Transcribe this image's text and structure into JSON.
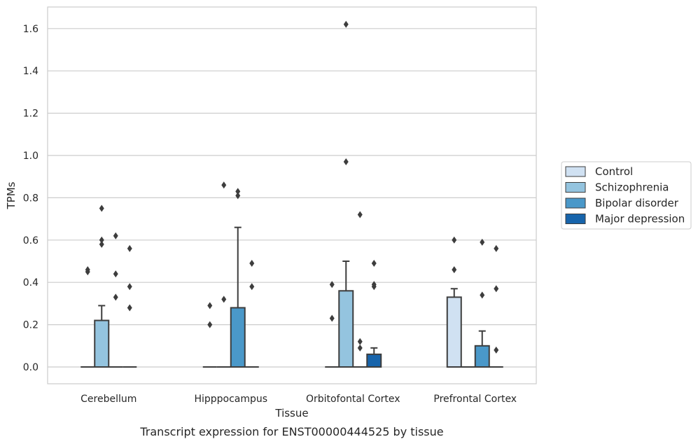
{
  "chart_data": {
    "type": "box",
    "title": "",
    "caption": "Transcript expression for ENST00000444525 by tissue",
    "xlabel": "Tissue",
    "ylabel": "TPMs",
    "ylim": [
      -0.08,
      1.7
    ],
    "yticks": [
      "0.0",
      "0.2",
      "0.4",
      "0.6",
      "0.8",
      "1.0",
      "1.2",
      "1.4",
      "1.6"
    ],
    "grid": "horizontal",
    "legend_position": "right",
    "categories": [
      "Cerebellum",
      "Hipppocampus",
      "Orbitofontal Cortex",
      "Prefrontal Cortex"
    ],
    "series": [
      {
        "name": "Control",
        "color": "#d0e1f2",
        "boxes": [
          {
            "q1": 0,
            "median": 0,
            "q3": 0,
            "whisker_low": 0,
            "whisker_high": 0,
            "outliers": [
              0.45,
              0.46
            ]
          },
          {
            "q1": 0,
            "median": 0,
            "q3": 0,
            "whisker_low": 0,
            "whisker_high": 0,
            "outliers": [
              0.2,
              0.29
            ]
          },
          {
            "q1": 0,
            "median": 0,
            "q3": 0,
            "whisker_low": 0,
            "whisker_high": 0,
            "outliers": [
              0.23,
              0.39
            ]
          },
          {
            "q1": 0,
            "median": 0,
            "q3": 0.33,
            "whisker_low": 0,
            "whisker_high": 0.37,
            "outliers": [
              0.46,
              0.6
            ]
          }
        ]
      },
      {
        "name": "Schizophrenia",
        "color": "#94c4df",
        "boxes": [
          {
            "q1": 0,
            "median": 0,
            "q3": 0.22,
            "whisker_low": 0,
            "whisker_high": 0.29,
            "outliers": [
              0.58,
              0.6,
              0.75
            ]
          },
          {
            "q1": 0,
            "median": 0,
            "q3": 0,
            "whisker_low": 0,
            "whisker_high": 0,
            "outliers": [
              0.32,
              0.86
            ]
          },
          {
            "q1": 0,
            "median": 0,
            "q3": 0.36,
            "whisker_low": 0,
            "whisker_high": 0.5,
            "outliers": [
              0.97,
              1.62
            ]
          },
          {
            "q1": 0,
            "median": 0,
            "q3": 0,
            "whisker_low": 0,
            "whisker_high": 0,
            "outliers": []
          }
        ]
      },
      {
        "name": "Bipolar disorder",
        "color": "#4a98c9",
        "boxes": [
          {
            "q1": 0,
            "median": 0,
            "q3": 0,
            "whisker_low": 0,
            "whisker_high": 0,
            "outliers": [
              0.33,
              0.44,
              0.62
            ]
          },
          {
            "q1": 0,
            "median": 0,
            "q3": 0.28,
            "whisker_low": 0,
            "whisker_high": 0.66,
            "outliers": [
              0.81,
              0.83
            ]
          },
          {
            "q1": 0,
            "median": 0,
            "q3": 0,
            "whisker_low": 0,
            "whisker_high": 0,
            "outliers": [
              0.09,
              0.12,
              0.72
            ]
          },
          {
            "q1": 0,
            "median": 0,
            "q3": 0.1,
            "whisker_low": 0,
            "whisker_high": 0.17,
            "outliers": [
              0.34,
              0.59
            ]
          }
        ]
      },
      {
        "name": "Major depression",
        "color": "#1764ab",
        "boxes": [
          {
            "q1": 0,
            "median": 0,
            "q3": 0,
            "whisker_low": 0,
            "whisker_high": 0,
            "outliers": [
              0.28,
              0.38,
              0.56
            ]
          },
          {
            "q1": 0,
            "median": 0,
            "q3": 0,
            "whisker_low": 0,
            "whisker_high": 0,
            "outliers": [
              0.38,
              0.49
            ]
          },
          {
            "q1": 0,
            "median": 0,
            "q3": 0.06,
            "whisker_low": 0,
            "whisker_high": 0.09,
            "outliers": [
              0.38,
              0.39,
              0.49
            ]
          },
          {
            "q1": 0,
            "median": 0,
            "q3": 0,
            "whisker_low": 0,
            "whisker_high": 0,
            "outliers": [
              0.08,
              0.37,
              0.56
            ]
          }
        ]
      }
    ]
  }
}
